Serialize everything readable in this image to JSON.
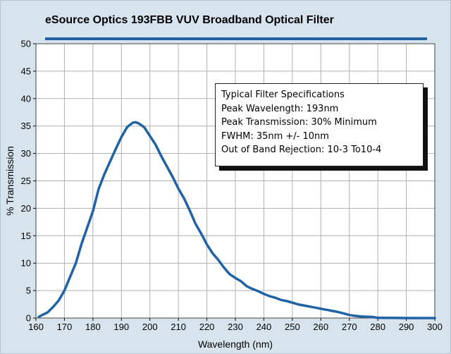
{
  "title": "eSource Optics 193FBB VUV Broadband Optical Filter",
  "spec_box": {
    "heading": "Typical Filter Specifications",
    "lines": [
      "Peak Wavelength: 193nm",
      "Peak Transmission: 30% Minimum",
      "FWHM: 35nm +/- 10nm",
      "Out of Band Rejection: 10-3 To10-4"
    ]
  },
  "colors": {
    "background": "#d7e4ee",
    "series": "#1f62a6",
    "grid": "#b0b0b0"
  },
  "chart_data": {
    "type": "line",
    "title": "eSource Optics 193FBB VUV Broadband Optical Filter",
    "xlabel": "Wavelength (nm)",
    "ylabel": "% Transmission",
    "xlim": [
      160,
      300
    ],
    "ylim": [
      0,
      50
    ],
    "x_ticks": [
      160,
      170,
      180,
      190,
      200,
      210,
      220,
      230,
      240,
      250,
      260,
      270,
      280,
      290,
      300
    ],
    "y_ticks": [
      0,
      5,
      10,
      15,
      20,
      25,
      30,
      35,
      40,
      45,
      50
    ],
    "grid": true,
    "series": [
      {
        "x": [
          161,
          162,
          164,
          166,
          168,
          170,
          172,
          174,
          176,
          178,
          180,
          182,
          184,
          186,
          188,
          190,
          192,
          194,
          195,
          196,
          198,
          200,
          202,
          204,
          206,
          208,
          210,
          212,
          214,
          216,
          218,
          220,
          222,
          224,
          226,
          228,
          230,
          232,
          234,
          236,
          238,
          240,
          242,
          244,
          246,
          248,
          250,
          252,
          254,
          256,
          258,
          260,
          262,
          264,
          266,
          268,
          270,
          272,
          274,
          276,
          278,
          280,
          285,
          290,
          295,
          300
        ],
        "y": [
          0.2,
          0.5,
          1.0,
          2.0,
          3.2,
          5.0,
          7.5,
          10.0,
          13.5,
          16.5,
          19.5,
          23.5,
          26.2,
          28.5,
          30.8,
          33.0,
          34.8,
          35.6,
          35.7,
          35.5,
          34.8,
          33.2,
          31.6,
          29.5,
          27.6,
          25.7,
          23.6,
          21.8,
          19.6,
          17.2,
          15.4,
          13.4,
          11.8,
          10.6,
          9.2,
          8.0,
          7.3,
          6.7,
          5.8,
          5.3,
          4.9,
          4.4,
          4.0,
          3.7,
          3.3,
          3.1,
          2.8,
          2.5,
          2.3,
          2.1,
          1.9,
          1.7,
          1.5,
          1.3,
          1.1,
          0.85,
          0.55,
          0.4,
          0.3,
          0.25,
          0.2,
          0.05,
          0.02,
          0.0,
          0.0,
          0.0
        ]
      }
    ]
  }
}
